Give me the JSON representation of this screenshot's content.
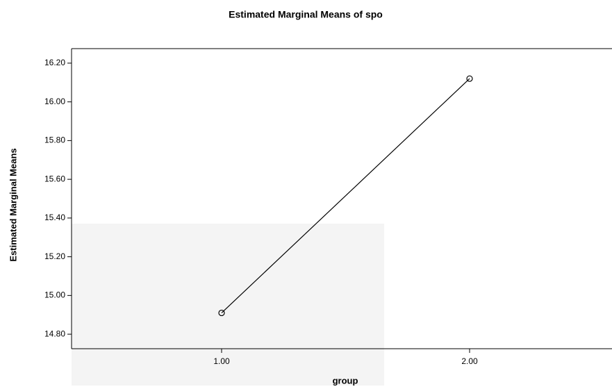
{
  "chart_data": {
    "type": "line",
    "title": "Estimated Marginal Means of spo",
    "x_label": "group",
    "y_label": "Estimated Marginal Means",
    "categories": [
      "1.00",
      "2.00"
    ],
    "values": [
      14.91,
      16.12
    ],
    "color": "#000000",
    "ylim": [
      14.725,
      16.275
    ],
    "yticks": [
      {
        "value": 14.8,
        "label": "14.80"
      },
      {
        "value": 15.0,
        "label": "15.00"
      },
      {
        "value": 15.2,
        "label": "15.20"
      },
      {
        "value": 15.4,
        "label": "15.40"
      },
      {
        "value": 15.6,
        "label": "15.60"
      },
      {
        "value": 15.8,
        "label": "15.80"
      },
      {
        "value": 16.0,
        "label": "16.00"
      },
      {
        "value": 16.2,
        "label": "16.20"
      }
    ]
  }
}
